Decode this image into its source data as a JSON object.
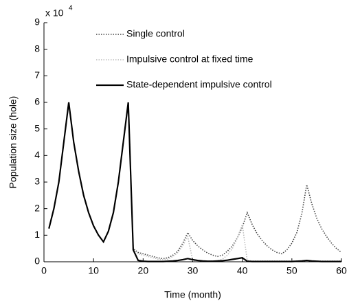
{
  "chart_data": {
    "type": "line",
    "x_label": "Time (month)",
    "y_label": "Population size (hole)",
    "y_multiplier": "x 10",
    "y_multiplier_exp": "4",
    "x": [
      1,
      2,
      3,
      4,
      5,
      6,
      7,
      8,
      9,
      10,
      11,
      12,
      13,
      14,
      15,
      16,
      17,
      18,
      19,
      20,
      21,
      22,
      23,
      24,
      25,
      26,
      27,
      28,
      29,
      30,
      31,
      32,
      33,
      34,
      35,
      36,
      37,
      38,
      39,
      40,
      41,
      42,
      43,
      44,
      45,
      46,
      47,
      48,
      49,
      50,
      51,
      52,
      53,
      54,
      55,
      56,
      57,
      58,
      59,
      60
    ],
    "series": [
      {
        "name": "Single control",
        "color": "#444444",
        "style": "dotted",
        "values": [
          1.25,
          2.0,
          3.0,
          4.5,
          6.0,
          4.5,
          3.4,
          2.5,
          1.85,
          1.35,
          1.0,
          0.75,
          1.15,
          1.85,
          3.0,
          4.5,
          6.0,
          0.5,
          0.35,
          0.3,
          0.25,
          0.2,
          0.15,
          0.12,
          0.15,
          0.25,
          0.4,
          0.7,
          1.1,
          0.8,
          0.6,
          0.45,
          0.33,
          0.25,
          0.2,
          0.25,
          0.4,
          0.6,
          0.9,
          1.3,
          1.85,
          1.4,
          1.05,
          0.8,
          0.6,
          0.45,
          0.35,
          0.3,
          0.45,
          0.7,
          1.1,
          1.8,
          2.9,
          2.2,
          1.65,
          1.25,
          0.95,
          0.7,
          0.5,
          0.35
        ]
      },
      {
        "name": "Impulsive control at fixed time",
        "color": "#bbbbbb",
        "style": "dotted",
        "values": [
          1.25,
          2.0,
          3.0,
          4.5,
          6.0,
          4.5,
          3.4,
          2.5,
          1.85,
          1.35,
          1.0,
          0.75,
          1.15,
          1.85,
          3.0,
          4.5,
          6.0,
          0.45,
          0.3,
          0.25,
          0.2,
          0.15,
          0.1,
          0.08,
          0.1,
          0.2,
          0.35,
          0.6,
          0.95,
          0.05,
          0.03,
          0.03,
          0.03,
          0.03,
          0.03,
          0.1,
          0.25,
          0.5,
          0.9,
          1.4,
          0.05,
          0.03,
          0.03,
          0.03,
          0.03,
          0.03,
          0.03,
          0.03,
          0.03,
          0.03,
          0.03,
          0.03,
          0.03,
          0.03,
          0.03,
          0.03,
          0.03,
          0.03,
          0.03,
          0.03
        ]
      },
      {
        "name": "State-dependent impulsive control",
        "color": "#000000",
        "style": "solid",
        "values": [
          1.25,
          2.0,
          3.0,
          4.5,
          6.0,
          4.5,
          3.4,
          2.5,
          1.85,
          1.35,
          1.0,
          0.75,
          1.15,
          1.85,
          3.0,
          4.5,
          6.0,
          0.45,
          0.05,
          0.02,
          0.01,
          0.01,
          0.01,
          0.01,
          0.02,
          0.03,
          0.05,
          0.08,
          0.12,
          0.08,
          0.05,
          0.03,
          0.02,
          0.02,
          0.03,
          0.04,
          0.06,
          0.09,
          0.12,
          0.15,
          0.02,
          0.01,
          0.01,
          0.01,
          0.01,
          0.01,
          0.01,
          0.01,
          0.01,
          0.01,
          0.02,
          0.03,
          0.05,
          0.03,
          0.02,
          0.01,
          0.01,
          0.01,
          0.01,
          0.01
        ]
      }
    ],
    "xlim": [
      0,
      60
    ],
    "xticks": [
      0,
      10,
      20,
      30,
      40,
      50,
      60
    ],
    "ylim": [
      0,
      9
    ],
    "yticks": [
      0,
      1,
      2,
      3,
      4,
      5,
      6,
      7,
      8,
      9
    ],
    "grid": false,
    "legend": "top"
  }
}
